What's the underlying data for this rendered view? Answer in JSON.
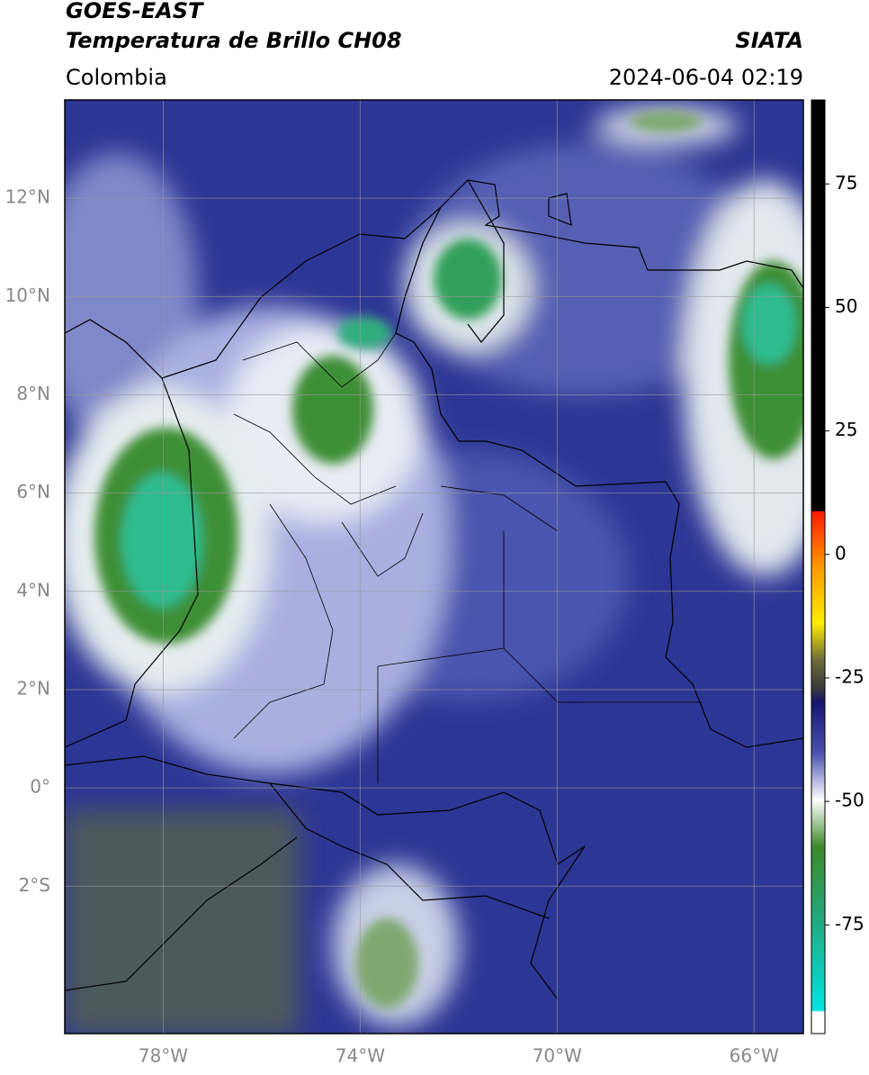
{
  "chart_data": {
    "type": "map",
    "title": "GOES-EAST",
    "subtitle": "Temperatura de Brillo CH08",
    "region": "Colombia",
    "source": "SIATA",
    "timestamp": "2024-06-04 02:19",
    "xlim": [
      -80,
      -65
    ],
    "ylim": [
      -5,
      14
    ],
    "xticks": [
      {
        "value": -78,
        "label": "78°W"
      },
      {
        "value": -74,
        "label": "74°W"
      },
      {
        "value": -70,
        "label": "70°W"
      },
      {
        "value": -66,
        "label": "66°W"
      }
    ],
    "yticks": [
      {
        "value": 12,
        "label": "12°N"
      },
      {
        "value": 10,
        "label": "10°N"
      },
      {
        "value": 8,
        "label": "8°N"
      },
      {
        "value": 6,
        "label": "6°N"
      },
      {
        "value": 4,
        "label": "4°N"
      },
      {
        "value": 2,
        "label": "2°N"
      },
      {
        "value": 0,
        "label": "0°"
      },
      {
        "value": -2,
        "label": "2°S"
      }
    ],
    "grid": true,
    "colorbar": {
      "lim": [
        -97,
        92
      ],
      "ticks": [
        75,
        50,
        25,
        0,
        -25,
        -50,
        -75
      ]
    }
  }
}
